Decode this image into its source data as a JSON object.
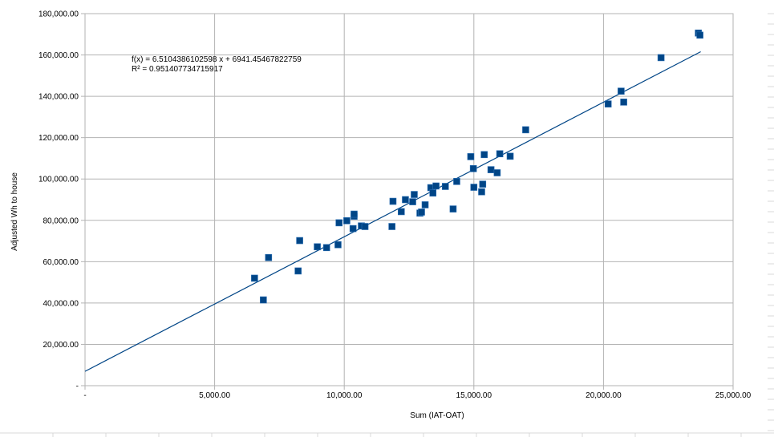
{
  "chart_data": {
    "type": "scatter",
    "title": "",
    "xlabel": "Sum (IAT-OAT)",
    "ylabel": "Adjusted Wh to house",
    "xlim": [
      0,
      25000
    ],
    "ylim": [
      0,
      180000
    ],
    "x_ticks": [
      0,
      5000,
      10000,
      15000,
      20000,
      25000
    ],
    "x_tick_labels": [
      "-",
      "5,000.00",
      "10,000.00",
      "15,000.00",
      "20,000.00",
      "25,000.00"
    ],
    "y_ticks": [
      0,
      20000,
      40000,
      60000,
      80000,
      100000,
      120000,
      140000,
      160000,
      180000
    ],
    "y_tick_labels": [
      "-",
      "20,000.00",
      "40,000.00",
      "60,000.00",
      "80,000.00",
      "100,000.00",
      "120,000.00",
      "140,000.00",
      "160,000.00",
      "180,000.00"
    ],
    "grid": true,
    "legend": "none",
    "marker_color": "#004586",
    "trendline_color": "#004586",
    "trendline": {
      "type": "linear",
      "slope": 6.5104386102598,
      "intercept": 6941.45467822759,
      "x_range": [
        0,
        23750
      ],
      "equation_text": "f(x) = 6.5104386102598 x + 6941.45467822759",
      "r2_text": "R² = 0.951407734715917"
    },
    "series": [
      {
        "points": [
          [
            6540,
            52000
          ],
          [
            6880,
            41500
          ],
          [
            7080,
            62000
          ],
          [
            8220,
            55500
          ],
          [
            8280,
            70200
          ],
          [
            8960,
            67200
          ],
          [
            9320,
            66800
          ],
          [
            9760,
            68200
          ],
          [
            9800,
            78800
          ],
          [
            10100,
            79800
          ],
          [
            10340,
            76000
          ],
          [
            10380,
            82000
          ],
          [
            10380,
            83000
          ],
          [
            10660,
            77300
          ],
          [
            10800,
            77000
          ],
          [
            11840,
            77000
          ],
          [
            11880,
            89200
          ],
          [
            12200,
            84200
          ],
          [
            12360,
            90000
          ],
          [
            12640,
            89000
          ],
          [
            12700,
            92500
          ],
          [
            12920,
            83500
          ],
          [
            12980,
            84000
          ],
          [
            13120,
            87500
          ],
          [
            13340,
            95800
          ],
          [
            13420,
            93200
          ],
          [
            13540,
            96600
          ],
          [
            13900,
            96400
          ],
          [
            14200,
            85500
          ],
          [
            14340,
            98800
          ],
          [
            14880,
            110800
          ],
          [
            14980,
            105000
          ],
          [
            15000,
            96000
          ],
          [
            15300,
            93800
          ],
          [
            15340,
            97500
          ],
          [
            15400,
            111800
          ],
          [
            15660,
            104500
          ],
          [
            15900,
            103000
          ],
          [
            16000,
            112200
          ],
          [
            16400,
            111000
          ],
          [
            17000,
            123800
          ],
          [
            20180,
            136300
          ],
          [
            20680,
            142500
          ],
          [
            20780,
            137200
          ],
          [
            22220,
            158700
          ],
          [
            23660,
            170600
          ],
          [
            23720,
            169600
          ]
        ]
      }
    ]
  }
}
